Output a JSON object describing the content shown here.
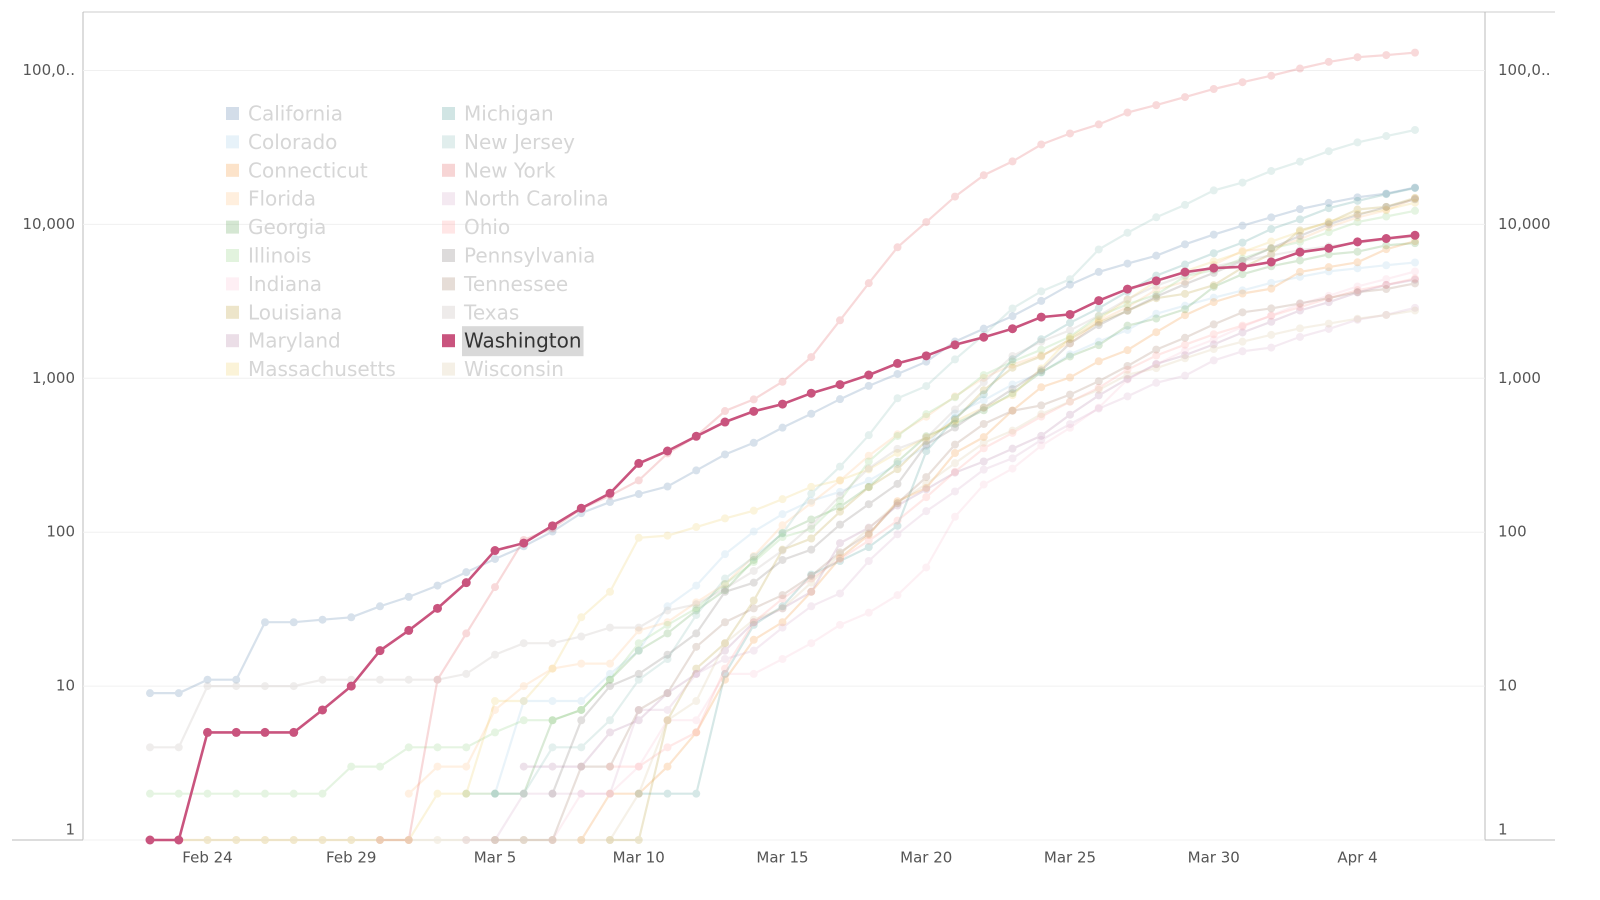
{
  "chart_data": {
    "type": "line",
    "log_scale": true,
    "grid": true,
    "highlight": "Washington",
    "categories": [
      null,
      null,
      "Feb 24",
      null,
      null,
      null,
      null,
      "Feb 29",
      null,
      null,
      null,
      null,
      "Mar 5",
      null,
      null,
      null,
      null,
      "Mar 10",
      null,
      null,
      null,
      null,
      "Mar 15",
      null,
      null,
      null,
      null,
      "Mar 20",
      null,
      null,
      null,
      null,
      "Mar 25",
      null,
      null,
      null,
      null,
      "Mar 30",
      null,
      null,
      null,
      null,
      "Apr 4",
      null,
      null
    ],
    "ylim": [
      1,
      240000
    ],
    "yticks": [
      1,
      10,
      100,
      {
        "value": 1000,
        "label": "1,000"
      },
      {
        "value": 10000,
        "label": "10,000"
      },
      {
        "value": 100000,
        "label": "100,0.."
      }
    ],
    "series": [
      {
        "name": "California",
        "color": "#4e79a7",
        "values": [
          9,
          9,
          11,
          11,
          26,
          26,
          27,
          28,
          33,
          38,
          45,
          55,
          67,
          81,
          101,
          133,
          157,
          177,
          198,
          252,
          320,
          381,
          478,
          588,
          732,
          893,
          1067,
          1283,
          1733,
          2102,
          2535,
          3183,
          4060,
          4914,
          5565,
          6266,
          7421,
          8582,
          9816,
          11120,
          12569,
          13796,
          14995,
          15865,
          17351
        ]
      },
      {
        "name": "Colorado",
        "color": "#a0cbe8",
        "values": [
          null,
          null,
          null,
          null,
          null,
          null,
          null,
          null,
          null,
          null,
          null,
          null,
          2,
          8,
          8,
          8,
          12,
          17,
          33,
          45,
          72,
          101,
          131,
          160,
          183,
          216,
          277,
          363,
          591,
          720,
          912,
          1086,
          1430,
          1734,
          2061,
          2627,
          2966,
          3342,
          3728,
          4173,
          4565,
          4950,
          5183,
          5429,
          5655
        ]
      },
      {
        "name": "Connecticut",
        "color": "#f28e2b",
        "values": [
          null,
          null,
          null,
          null,
          null,
          null,
          null,
          null,
          null,
          null,
          null,
          null,
          null,
          null,
          null,
          1,
          2,
          2,
          3,
          5,
          11,
          20,
          26,
          41,
          68,
          96,
          159,
          194,
          327,
          415,
          618,
          875,
          1012,
          1291,
          1524,
          1993,
          2571,
          3128,
          3557,
          3824,
          4914,
          5276,
          5675,
          6906,
          7781
        ]
      },
      {
        "name": "Florida",
        "color": "#ffbe7d",
        "values": [
          null,
          null,
          null,
          null,
          null,
          null,
          null,
          null,
          null,
          2,
          3,
          3,
          7,
          10,
          13,
          14,
          14,
          23,
          26,
          35,
          46,
          70,
          111,
          155,
          216,
          314,
          432,
          563,
          763,
          1007,
          1227,
          1412,
          1682,
          2355,
          2900,
          3763,
          4246,
          5473,
          6741,
          6955,
          8010,
          9585,
          11111,
          12350,
          14747
        ]
      },
      {
        "name": "Georgia",
        "color": "#59a14f",
        "values": [
          null,
          null,
          null,
          null,
          null,
          null,
          null,
          null,
          null,
          null,
          null,
          2,
          2,
          2,
          6,
          7,
          11,
          17,
          22,
          31,
          42,
          66,
          99,
          121,
          146,
          197,
          287,
          420,
          507,
          620,
          800,
          1097,
          1387,
          1643,
          2198,
          2446,
          2808,
          3929,
          4748,
          5348,
          5831,
          6383,
          6647,
          7314,
          7558
        ]
      },
      {
        "name": "Illinois",
        "color": "#8cd17d",
        "values": [
          2,
          2,
          2,
          2,
          2,
          2,
          2,
          3,
          3,
          4,
          4,
          4,
          5,
          6,
          6,
          7,
          11,
          19,
          25,
          32,
          46,
          64,
          93,
          105,
          160,
          288,
          422,
          585,
          753,
          1049,
          1285,
          1535,
          1865,
          2538,
          3026,
          3491,
          4596,
          5056,
          5994,
          6980,
          7695,
          8904,
          10357,
          11256,
          12262
        ]
      },
      {
        "name": "Indiana",
        "color": "#fabfd2",
        "values": [
          null,
          null,
          null,
          null,
          null,
          null,
          null,
          null,
          null,
          null,
          null,
          null,
          null,
          null,
          1,
          2,
          2,
          3,
          6,
          6,
          12,
          12,
          15,
          19,
          25,
          30,
          39,
          59,
          126,
          204,
          259,
          365,
          477,
          645,
          981,
          1232,
          1514,
          1786,
          2159,
          2565,
          3039,
          3437,
          3953,
          4411,
          4944
        ]
      },
      {
        "name": "Louisiana",
        "color": "#b6992d",
        "values": [
          null,
          null,
          null,
          null,
          null,
          null,
          null,
          null,
          null,
          null,
          null,
          null,
          null,
          null,
          null,
          null,
          1,
          1,
          6,
          13,
          19,
          36,
          77,
          91,
          136,
          196,
          257,
          392,
          538,
          837,
          1172,
          1388,
          1795,
          2305,
          2746,
          3315,
          3540,
          4025,
          5237,
          6424,
          9150,
          10297,
          12496,
          13010,
          14867
        ]
      },
      {
        "name": "Maryland",
        "color": "#b07aa1",
        "values": [
          null,
          null,
          null,
          null,
          null,
          null,
          null,
          null,
          null,
          null,
          null,
          null,
          null,
          3,
          3,
          3,
          5,
          6,
          9,
          12,
          17,
          26,
          32,
          41,
          85,
          107,
          149,
          190,
          244,
          288,
          349,
          423,
          580,
          774,
          992,
          1239,
          1413,
          1660,
          1985,
          2331,
          2758,
          3125,
          3609,
          4045,
          4371
        ]
      },
      {
        "name": "Massachusetts",
        "color": "#f1ce63",
        "values": [
          1,
          1,
          1,
          1,
          1,
          1,
          1,
          1,
          1,
          1,
          2,
          2,
          8,
          8,
          13,
          28,
          41,
          92,
          95,
          108,
          123,
          138,
          164,
          197,
          218,
          256,
          328,
          413,
          525,
          646,
          777,
          1159,
          1838,
          2417,
          3240,
          4257,
          4955,
          5752,
          6620,
          7738,
          8966,
          10402,
          11736,
          12500,
          13837
        ]
      },
      {
        "name": "Michigan",
        "color": "#499894",
        "values": [
          null,
          null,
          null,
          null,
          null,
          null,
          null,
          null,
          null,
          null,
          null,
          null,
          null,
          null,
          null,
          null,
          null,
          2,
          2,
          2,
          12,
          25,
          33,
          53,
          65,
          80,
          110,
          336,
          549,
          787,
          1329,
          1793,
          2295,
          2856,
          3657,
          4650,
          5486,
          6498,
          7615,
          9334,
          10791,
          12744,
          14225,
          15718,
          17221
        ]
      },
      {
        "name": "New Jersey",
        "color": "#86bcb6",
        "values": [
          null,
          null,
          null,
          null,
          null,
          null,
          null,
          null,
          null,
          null,
          null,
          null,
          2,
          2,
          4,
          4,
          6,
          11,
          15,
          29,
          50,
          69,
          98,
          178,
          267,
          427,
          742,
          890,
          1327,
          1914,
          2844,
          3675,
          4402,
          6876,
          8825,
          11124,
          13386,
          16636,
          18696,
          22255,
          25590,
          29895,
          34124,
          37505,
          41090
        ]
      },
      {
        "name": "New York",
        "color": "#e15759",
        "values": [
          null,
          null,
          null,
          null,
          null,
          null,
          null,
          null,
          1,
          1,
          11,
          22,
          44,
          89,
          106,
          142,
          173,
          217,
          325,
          421,
          613,
          729,
          950,
          1374,
          2382,
          4152,
          7102,
          10356,
          15168,
          20875,
          25665,
          33066,
          38987,
          44635,
          53363,
          59568,
          67174,
          75833,
          83948,
          92506,
          102987,
          113833,
          122031,
          126000,
          130689
        ]
      },
      {
        "name": "North Carolina",
        "color": "#d4a6c8",
        "values": [
          null,
          null,
          null,
          null,
          null,
          null,
          null,
          null,
          null,
          null,
          null,
          1,
          1,
          2,
          2,
          2,
          2,
          7,
          7,
          12,
          15,
          17,
          24,
          33,
          40,
          65,
          97,
          137,
          184,
          255,
          302,
          398,
          504,
          636,
          763,
          935,
          1040,
          1307,
          1498,
          1584,
          1857,
          2093,
          2402,
          2585,
          2870
        ]
      },
      {
        "name": "Ohio",
        "color": "#ff9d9a",
        "values": [
          null,
          null,
          null,
          null,
          null,
          null,
          null,
          null,
          null,
          null,
          null,
          null,
          null,
          null,
          null,
          null,
          3,
          3,
          4,
          5,
          13,
          26,
          37,
          50,
          67,
          88,
          119,
          169,
          247,
          351,
          442,
          564,
          704,
          867,
          1137,
          1406,
          1653,
          1933,
          2199,
          2547,
          2902,
          3312,
          3739,
          4043,
          4450
        ]
      },
      {
        "name": "Pennsylvania",
        "color": "#79706e",
        "values": [
          null,
          null,
          null,
          null,
          null,
          null,
          null,
          null,
          null,
          null,
          null,
          null,
          null,
          null,
          2,
          6,
          10,
          12,
          16,
          22,
          41,
          47,
          66,
          77,
          112,
          152,
          206,
          371,
          479,
          644,
          851,
          1127,
          1687,
          2218,
          2751,
          3394,
          4087,
          4843,
          5805,
          7016,
          8420,
          10017,
          11510,
          12980,
          14559
        ]
      },
      {
        "name": "Tennessee",
        "color": "#9d7660",
        "values": [
          null,
          null,
          null,
          null,
          null,
          null,
          null,
          null,
          null,
          null,
          null,
          null,
          1,
          1,
          1,
          3,
          3,
          7,
          9,
          18,
          26,
          32,
          39,
          52,
          74,
          98,
          154,
          228,
          371,
          505,
          615,
          667,
          784,
          957,
          1203,
          1537,
          1834,
          2239,
          2683,
          2845,
          3067,
          3321,
          3633,
          3802,
          4138
        ]
      },
      {
        "name": "Texas",
        "color": "#bab0ac",
        "values": [
          4,
          4,
          10,
          10,
          10,
          10,
          11,
          11,
          11,
          11,
          11,
          12,
          16,
          19,
          19,
          21,
          24,
          24,
          31,
          34,
          43,
          56,
          76,
          110,
          173,
          260,
          348,
          410,
          627,
          943,
          1396,
          1731,
          2052,
          2552,
          3266,
          3997,
          4669,
          5330,
          5800,
          6300,
          6800,
          7200,
          7600,
          8000,
          8400
        ]
      },
      {
        "name": "Washington",
        "color": "#c9547e",
        "values": [
          1,
          1,
          5,
          5,
          5,
          5,
          7,
          10,
          17,
          23,
          32,
          47,
          76,
          85,
          110,
          143,
          179,
          280,
          337,
          420,
          520,
          610,
          680,
          800,
          910,
          1050,
          1250,
          1400,
          1650,
          1850,
          2100,
          2500,
          2600,
          3200,
          3800,
          4300,
          4900,
          5200,
          5300,
          5700,
          6600,
          7000,
          7700,
          8100,
          8500
        ]
      },
      {
        "name": "Wisconsin",
        "color": "#d7c49a",
        "values": [
          1,
          1,
          1,
          1,
          1,
          1,
          1,
          1,
          1,
          1,
          1,
          1,
          1,
          1,
          1,
          1,
          1,
          2,
          6,
          8,
          19,
          27,
          32,
          47,
          72,
          106,
          155,
          206,
          281,
          381,
          457,
          585,
          707,
          842,
          1055,
          1164,
          1350,
          1550,
          1730,
          1916,
          2112,
          2267,
          2440,
          2578,
          2756
        ]
      }
    ]
  }
}
